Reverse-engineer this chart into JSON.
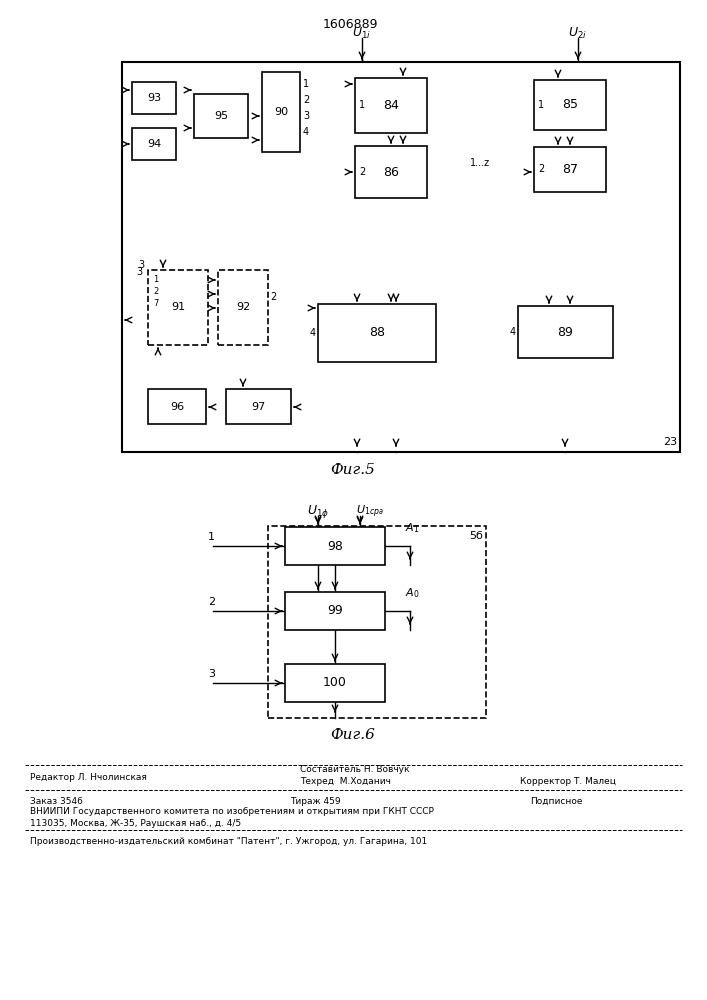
{
  "title": "1606889",
  "fig5_label": "Фиг.5",
  "fig6_label": "Фиг.6"
}
